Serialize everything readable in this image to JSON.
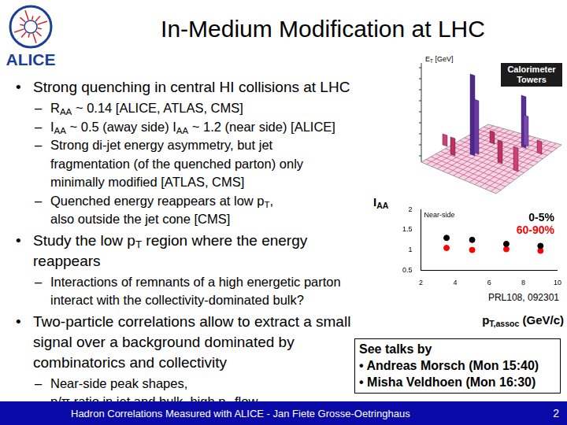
{
  "header": {
    "logo_text": "ALICE",
    "title": "In-Medium Modification at LHC"
  },
  "list_symbols": [
    "•",
    "–"
  ],
  "bullets": [
    {
      "lines": [
        [
          "Strong quenching in central HI collisions at LHC"
        ]
      ],
      "children": [
        {
          "lines": [
            [
              "R",
              {
                "sub": "AA"
              },
              " ~ 0.14 [ALICE, ATLAS, CMS]"
            ]
          ]
        },
        {
          "lines": [
            [
              "I",
              {
                "sub": "AA"
              },
              " ~ 0.5 (away side) I",
              {
                "sub": "AA"
              },
              " ~ 1.2 (near side) [ALICE]"
            ]
          ]
        },
        {
          "lines": [
            [
              "Strong di-jet energy asymmetry, but jet"
            ],
            [
              "fragmentation (of the quenched parton) only"
            ],
            [
              "minimally modified [ATLAS, CMS]"
            ]
          ]
        },
        {
          "lines": [
            [
              "Quenched energy reappears at low p",
              {
                "sub": "T"
              },
              ","
            ],
            [
              "also outside the jet cone [CMS]"
            ]
          ]
        }
      ]
    },
    {
      "lines": [
        [
          "Study the low p",
          {
            "sub": "T"
          },
          " region where the energy"
        ],
        [
          "reappears"
        ]
      ],
      "children": [
        {
          "lines": [
            [
              "Interactions of remnants of a high energetic parton"
            ],
            [
              "interact with the collectivity-dominated bulk?"
            ]
          ]
        }
      ]
    },
    {
      "lines": [
        [
          "Two-particle correlations allow to extract a small"
        ],
        [
          "signal over a background dominated by"
        ],
        [
          "combinatorics and collectivity"
        ]
      ],
      "children": [
        {
          "lines": [
            [
              "Near-side peak shapes,"
            ],
            [
              "p/π ratio in jet and bulk, high p",
              {
                "sub": "T"
              },
              " flow"
            ]
          ]
        }
      ]
    }
  ],
  "calorimeter": {
    "label": "Calorimeter Towers",
    "axis_label": [
      "E",
      {
        "sub": "T"
      },
      " [GeV]"
    ]
  },
  "chart_data": {
    "type": "scatter",
    "ylabel": [
      "I",
      {
        "sub": "AA"
      }
    ],
    "xlabel": [
      "p",
      {
        "sub": "T,assoc"
      },
      " (GeV/c)"
    ],
    "annotations": [
      "Near-side",
      "PRL108, 092301"
    ],
    "x": [
      3.5,
      5,
      7,
      9
    ],
    "series": [
      {
        "name": "0-5%",
        "color": "#000000",
        "marker": "circle",
        "values": [
          1.3,
          1.25,
          1.15,
          1.1
        ]
      },
      {
        "name": "60-90%",
        "color": "#ff0000",
        "marker": "circle",
        "values": [
          1.05,
          1.0,
          1.02,
          0.98
        ]
      }
    ],
    "xlim": [
      2,
      10
    ],
    "xticks": [
      2,
      4,
      6,
      8,
      10
    ],
    "ylim": [
      0.5,
      2
    ],
    "yticks": [
      0.5,
      1,
      1.5,
      2
    ],
    "grid": false,
    "legend": "upper right"
  },
  "talks": {
    "heading": "See talks by",
    "items": [
      "• Andreas Morsch (Mon 15:40)",
      "• Misha Veldhoen (Mon 16:30)"
    ]
  },
  "footer": {
    "text": "Hadron Correlations Measured with ALICE - Jan Fiete Grosse-Oetringhaus",
    "page": 2
  }
}
